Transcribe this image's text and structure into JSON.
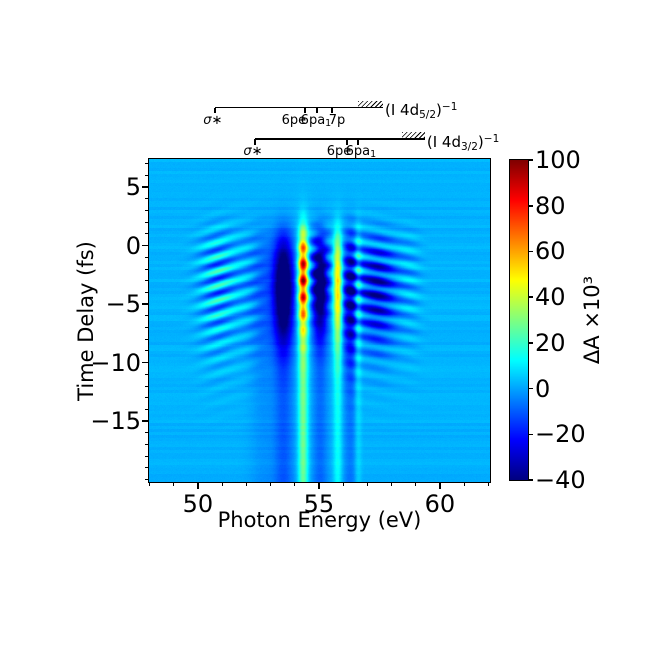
{
  "figure": {
    "background": "#ffffff",
    "text_color": "#000000"
  },
  "chart_data": {
    "type": "heatmap",
    "title": "",
    "xlabel": "Photon Energy (eV)",
    "ylabel": "Time Delay (fs)",
    "colorbar_label": "ΔA ×10³",
    "colormap": "jet",
    "x_range": [
      47.98,
      62.07
    ],
    "y_range": [
      -20.2,
      7.4
    ],
    "clim": [
      -40,
      100
    ],
    "grid": false,
    "x_ticks": [
      {
        "v": 50,
        "label": "50"
      },
      {
        "v": 55,
        "label": "55"
      },
      {
        "v": 60,
        "label": "60"
      }
    ],
    "x_minor_step": 1,
    "y_ticks": [
      {
        "v": 5,
        "label": "5"
      },
      {
        "v": 0,
        "label": "0"
      },
      {
        "v": -5,
        "label": "−5"
      },
      {
        "v": -10,
        "label": "−10"
      },
      {
        "v": -15,
        "label": "−15"
      }
    ],
    "y_minor_step": 1,
    "colorbar_ticks": [
      {
        "v": 100,
        "label": "100"
      },
      {
        "v": 80,
        "label": "80"
      },
      {
        "v": 60,
        "label": "60"
      },
      {
        "v": 40,
        "label": "40"
      },
      {
        "v": 20,
        "label": "20"
      },
      {
        "v": 0,
        "label": "0"
      },
      {
        "v": -20,
        "label": "−20"
      },
      {
        "v": -40,
        "label": "−40"
      }
    ],
    "level_rows": [
      {
        "name": "I-4d5/2-manifold",
        "label_parts": {
          "pre": "(I 4d",
          "sub": "5/2",
          "post": ")",
          "sup": "−1"
        },
        "states": [
          {
            "label": "σ∗",
            "E": 50.7,
            "italic": true,
            "dx": -2
          },
          {
            "label": "6pe",
            "E": 54.42,
            "dx": -11
          },
          {
            "label": "6pa",
            "sub": "1",
            "E": 54.92,
            "dx": -1
          },
          {
            "label": "7p",
            "E": 55.54,
            "dx": 5
          }
        ],
        "continuum_E": 56.61,
        "hatch_end_E": 57.65
      },
      {
        "name": "I-4d3/2-manifold",
        "label_parts": {
          "pre": "(I 4d",
          "sub": "3/2",
          "post": ")",
          "sup": "−1"
        },
        "states": [
          {
            "label": "σ∗",
            "E": 52.36,
            "italic": true,
            "dx": -2
          },
          {
            "label": "6pe",
            "E": 56.16,
            "dx": -8
          },
          {
            "label": "6pa",
            "sub": "1",
            "E": 56.61,
            "dx": 3
          }
        ],
        "continuum_E": 58.43,
        "hatch_end_E": 59.38
      }
    ],
    "model": {
      "hbar": 0.658,
      "background": 2,
      "turn_on": {
        "t0": 1.5,
        "width": 1.6
      },
      "main_line": {
        "E": 54.35,
        "sigma": 0.2,
        "persist": 34,
        "burst": 70,
        "burst_t0": -2.8,
        "burst_tw": 4.2,
        "bead_period": 1.45,
        "bead_phase": -0.1,
        "bead_depth": 0.27
      },
      "gauss_lines": [
        {
          "E": 53.55,
          "sigma": 0.42,
          "base": -12,
          "peak": -48,
          "t0": -3.8,
          "tw": 4.6
        },
        {
          "E": 55.05,
          "sigma": 0.33,
          "base": -10,
          "peak": -44,
          "t0": -3.5,
          "tw": 4.2
        },
        {
          "E": 55.78,
          "sigma": 0.18,
          "base": 12,
          "peak": 40,
          "t0": -3.5,
          "tw": 5.0
        },
        {
          "E": 56.3,
          "sigma": 0.3,
          "base": -8,
          "peak": -28,
          "t0": -4.5,
          "tw": 5.5
        },
        {
          "E": 56.62,
          "sigma": 0.15,
          "base": 7,
          "peak": 14,
          "t0": -4.0,
          "tw": 6.0
        },
        {
          "E": 57.4,
          "sigma": 0.75,
          "base": 0,
          "peak": -26,
          "t0": -4.0,
          "tw": 4.5
        },
        {
          "E": 52.7,
          "sigma": 0.55,
          "base": -4,
          "peak": -8,
          "t0": -4.0,
          "tw": 6.0
        }
      ],
      "osc_lines": [
        {
          "E": 54.8,
          "sigma": 0.28,
          "amp": 15,
          "period": 1.4,
          "phase": -0.3,
          "t0": -1.2,
          "tw": 4.0
        },
        {
          "E": 55.38,
          "sigma": 0.26,
          "amp": 11,
          "period": 1.4,
          "phase": 0.4,
          "t0": -1.2,
          "tw": 4.0
        }
      ],
      "fringes": {
        "E0": 54.35,
        "period": 1.25,
        "t0": -2.8,
        "tw": 6.2,
        "bands": [
          {
            "E": 50.85,
            "sigma": 0.78,
            "amp": 22,
            "tilt": 0.62
          },
          {
            "E": 52.15,
            "sigma": 0.55,
            "amp": 8,
            "tilt": 0.62
          },
          {
            "E": 56.45,
            "sigma": 0.45,
            "amp": 14,
            "tilt": 0.38
          },
          {
            "E": 57.45,
            "sigma": 0.85,
            "amp": 20,
            "tilt": 0.38
          },
          {
            "E": 58.75,
            "sigma": 0.5,
            "amp": 8,
            "tilt": 0.38
          }
        ]
      },
      "noise": {
        "seed": 7,
        "row_amp": 1.4,
        "pixel_amp": 0.9
      }
    }
  }
}
